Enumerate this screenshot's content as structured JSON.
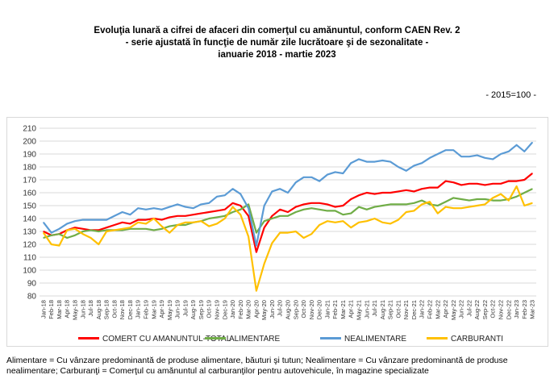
{
  "title": {
    "line1": "Evoluţia lunară a cifrei de afaceri din comerţul cu amănuntul, conform CAEN Rev. 2",
    "line2": "- serie ajustată în funcţie de număr zile lucrătoare şi de sezonalitate -",
    "line3": "ianuarie 2018 - martie 2023"
  },
  "unit_note": "- 2015=100 -",
  "footnote": "Alimentare = Cu vânzare predominantă de produse alimentare, băuturi şi tutun; Nealimentare = Cu vânzare predominantă de produse nealimentare; Carburanţi = Comerţul cu amănuntul al carburanţilor pentru autovehicule, în magazine specializate",
  "chart_data": {
    "type": "line",
    "ylim": [
      80,
      210
    ],
    "yticks": [
      80,
      90,
      100,
      110,
      120,
      130,
      140,
      150,
      160,
      170,
      180,
      190,
      200,
      210
    ],
    "grid": true,
    "legend_position": "bottom",
    "x": [
      "Jan-18",
      "Feb-18",
      "Mar-18",
      "Apr-18",
      "May-18",
      "Jun-18",
      "Jul-18",
      "Aug-18",
      "Sep-18",
      "Oct-18",
      "Nov-18",
      "Dec-18",
      "Jan-19",
      "Feb-19",
      "Mar-19",
      "Apr-19",
      "May-19",
      "Jun-19",
      "Jul-19",
      "Aug-19",
      "Sep-19",
      "Oct-19",
      "Nov-19",
      "Dec-19",
      "Jan-20",
      "Feb-20",
      "Mar-20",
      "Apr-20",
      "May-20",
      "Jun-20",
      "Jul-20",
      "Aug-20",
      "Sep-20",
      "Oct-20",
      "Nov-20",
      "Dec-20",
      "Jan-21",
      "Feb-21",
      "Mar-21",
      "Apr-21",
      "May-21",
      "Jun-21",
      "Jul-21",
      "Aug-21",
      "Sep-21",
      "Oct-21",
      "Nov-21",
      "Dec-21",
      "Jan-22",
      "Feb-22",
      "Mar-22",
      "Apr-22",
      "May-22",
      "Jun-22",
      "Jul-22",
      "Aug-22",
      "Sep-22",
      "Oct-22",
      "Nov-22",
      "Dec-22",
      "Jan-23",
      "Feb-23",
      "Mar-23"
    ],
    "xtick_labels": [
      "Jan-18",
      "Feb-18",
      "Mar-18",
      "Apr-18",
      "May-18",
      "Jun-18",
      "Jul-18",
      "Aug-18",
      "Sep-18",
      "Oct-18",
      "Nov-18",
      "Dec-18",
      "Jan-19",
      "Feb-19",
      "Mar-19",
      "Apr-19",
      "May-19",
      "Jun-19",
      "Jul-19",
      "Aug-19",
      "Sep-19",
      "Oct-19",
      "Nov-19",
      "Dec-19",
      "Jan-20",
      "Feb-20",
      "Mar-20",
      "Apr-20",
      "May-20",
      "Jun-20",
      "Jul-20",
      "Aug-20",
      "Sep-20",
      "Oct-20",
      "Nov-20",
      "Dec-20",
      "Jan-21",
      "Feb-21",
      "Mar-21",
      "Apr-21",
      "May-21",
      "Jun-21",
      "Jul-21",
      "Aug-21",
      "Sep-21",
      "Oct-21",
      "Nov-21",
      "Dec-21",
      "Jan-22",
      "Feb-22",
      "Mar-22",
      "Apr-22",
      "May-22",
      "Jun-22",
      "Jul-22",
      "Aug-22",
      "Sep-22",
      "Oct-22",
      "Nov-22",
      "Dec-22",
      "Jan-23",
      "Feb-23",
      "Mar-23"
    ],
    "series": [
      {
        "name": "COMERT CU AMANUNTUL-TOTAL",
        "color": "#ff0000",
        "values": [
          130,
          127,
          128,
          131,
          133,
          132,
          131,
          131,
          133,
          135,
          137,
          136,
          139,
          139,
          140,
          139,
          141,
          142,
          142,
          143,
          144,
          145,
          146,
          147,
          152,
          150,
          142,
          114,
          133,
          142,
          147,
          145,
          149,
          151,
          152,
          152,
          151,
          149,
          150,
          155,
          158,
          160,
          159,
          160,
          160,
          161,
          162,
          161,
          163,
          164,
          164,
          169,
          168,
          166,
          167,
          167,
          166,
          167,
          167,
          169,
          169,
          170,
          175
        ]
      },
      {
        "name": "ALIMENTARE",
        "color": "#70ad47",
        "values": [
          125,
          127,
          128,
          125,
          127,
          130,
          131,
          130,
          131,
          131,
          131,
          132,
          132,
          132,
          131,
          132,
          134,
          135,
          135,
          137,
          138,
          140,
          141,
          142,
          145,
          147,
          151,
          129,
          138,
          140,
          142,
          142,
          145,
          147,
          148,
          147,
          146,
          146,
          143,
          144,
          149,
          147,
          149,
          150,
          151,
          151,
          151,
          152,
          154,
          151,
          150,
          153,
          156,
          155,
          154,
          155,
          155,
          154,
          154,
          155,
          157,
          160,
          163
        ]
      },
      {
        "name": "NEALIMENTARE",
        "color": "#5b9bd5",
        "values": [
          137,
          129,
          132,
          136,
          138,
          139,
          139,
          139,
          139,
          142,
          145,
          143,
          148,
          147,
          148,
          147,
          149,
          151,
          149,
          148,
          151,
          152,
          157,
          158,
          163,
          159,
          148,
          119,
          150,
          161,
          163,
          160,
          168,
          172,
          172,
          169,
          174,
          176,
          175,
          183,
          186,
          184,
          184,
          185,
          184,
          180,
          177,
          181,
          183,
          187,
          190,
          193,
          193,
          188,
          188,
          189,
          187,
          186,
          190,
          192,
          197,
          192,
          199
        ]
      },
      {
        "name": "CARBURANTI",
        "color": "#ffc000",
        "values": [
          129,
          120,
          119,
          131,
          132,
          128,
          125,
          120,
          130,
          131,
          132,
          133,
          137,
          136,
          140,
          134,
          129,
          135,
          137,
          137,
          138,
          134,
          136,
          140,
          149,
          143,
          126,
          84,
          105,
          121,
          129,
          129,
          130,
          125,
          128,
          135,
          138,
          137,
          138,
          133,
          137,
          138,
          140,
          137,
          136,
          139,
          145,
          146,
          151,
          153,
          144,
          149,
          148,
          148,
          149,
          150,
          151,
          156,
          159,
          154,
          165,
          150,
          152
        ]
      }
    ]
  }
}
